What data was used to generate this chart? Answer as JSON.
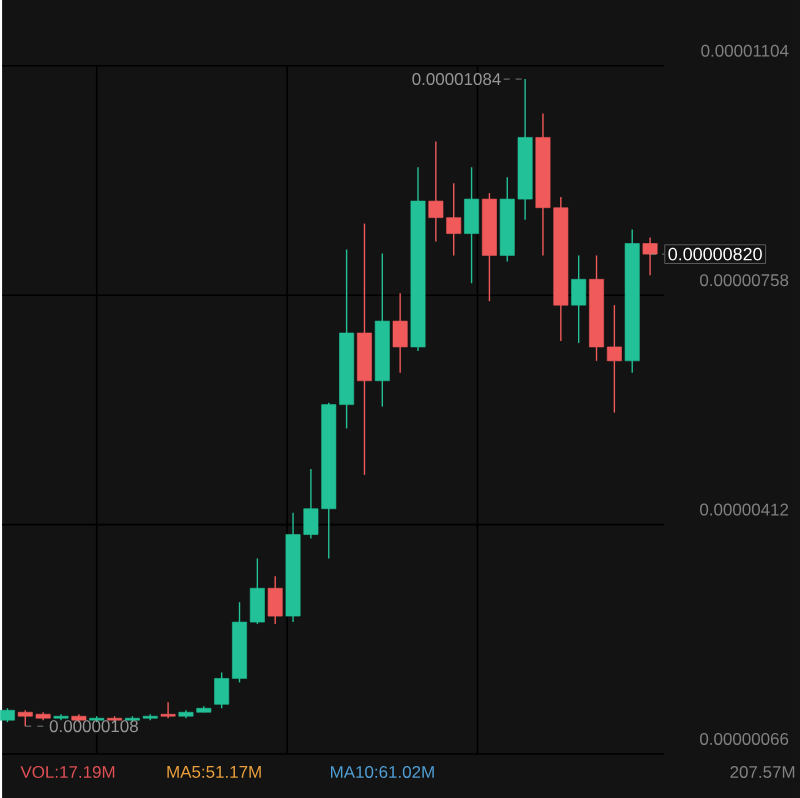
{
  "chart_data": {
    "type": "candlestick",
    "categories": [
      null,
      null,
      null,
      null,
      null,
      null,
      null,
      null,
      null,
      null,
      null,
      null,
      null,
      null,
      null,
      null,
      null,
      null,
      null,
      null,
      null,
      null,
      null,
      null,
      null,
      null,
      null,
      null,
      null,
      null,
      null,
      null,
      null,
      null,
      null,
      null,
      null
    ],
    "ohlc": [
      [
        1.17e-06,
        1.35e-06,
        1.14e-06,
        1.32e-06
      ],
      [
        1.29e-06,
        1.32e-06,
        1.08e-06,
        1.23e-06
      ],
      [
        1.26e-06,
        1.29e-06,
        1.17e-06,
        1.2e-06
      ],
      [
        1.2e-06,
        1.26e-06,
        1.17e-06,
        1.23e-06
      ],
      [
        1.23e-06,
        1.26e-06,
        1.14e-06,
        1.17e-06
      ],
      [
        1.17e-06,
        1.23e-06,
        1.14e-06,
        1.2e-06
      ],
      [
        1.2e-06,
        1.23e-06,
        1.14e-06,
        1.17e-06
      ],
      [
        1.17e-06,
        1.23e-06,
        1.14e-06,
        1.2e-06
      ],
      [
        1.2e-06,
        1.26e-06,
        1.17e-06,
        1.23e-06
      ],
      [
        1.26e-06,
        1.44e-06,
        1.2e-06,
        1.23e-06
      ],
      [
        1.23e-06,
        1.32e-06,
        1.2e-06,
        1.29e-06
      ],
      [
        1.29e-06,
        1.38e-06,
        1.29e-06,
        1.35e-06
      ],
      [
        1.41e-06,
        1.89e-06,
        1.35e-06,
        1.8e-06
      ],
      [
        1.8e-06,
        2.95e-06,
        1.74e-06,
        2.65e-06
      ],
      [
        2.65e-06,
        3.61e-06,
        2.62e-06,
        3.16e-06
      ],
      [
        3.16e-06,
        3.34e-06,
        2.62e-06,
        2.74e-06
      ],
      [
        2.74e-06,
        4.3e-06,
        2.65e-06,
        3.97e-06
      ],
      [
        3.97e-06,
        4.96e-06,
        3.91e-06,
        4.36e-06
      ],
      [
        4.36e-06,
        5.96e-06,
        3.61e-06,
        5.93e-06
      ],
      [
        5.93e-06,
        8.27e-06,
        5.57e-06,
        7.01e-06
      ],
      [
        7.01e-06,
        8.66e-06,
        4.87e-06,
        6.29e-06
      ],
      [
        6.29e-06,
        8.21e-06,
        5.9e-06,
        7.19e-06
      ],
      [
        7.19e-06,
        7.61e-06,
        6.41e-06,
        6.8e-06
      ],
      [
        6.8e-06,
        9.51e-06,
        6.74e-06,
        9e-06
      ],
      [
        9e-06,
        9.9e-06,
        8.39e-06,
        8.75e-06
      ],
      [
        8.75e-06,
        9.27e-06,
        8.18e-06,
        8.51e-06
      ],
      [
        8.51e-06,
        9.51e-06,
        7.76e-06,
        9.03e-06
      ],
      [
        9.03e-06,
        9.12e-06,
        7.49e-06,
        8.18e-06
      ],
      [
        8.18e-06,
        9.36e-06,
        8.09e-06,
        9.03e-06
      ],
      [
        9.03e-06,
        1.084e-05,
        8.72e-06,
        9.96e-06
      ],
      [
        9.96e-06,
        1.032e-05,
        8.18e-06,
        8.9e-06
      ],
      [
        8.9e-06,
        9.06e-06,
        6.89e-06,
        7.43e-06
      ],
      [
        7.43e-06,
        8.18e-06,
        6.86e-06,
        7.82e-06
      ],
      [
        7.82e-06,
        8.18e-06,
        6.59e-06,
        6.8e-06
      ],
      [
        6.8e-06,
        7.43e-06,
        5.81e-06,
        6.59e-06
      ],
      [
        6.59e-06,
        8.57e-06,
        6.41e-06,
        8.36e-06
      ],
      [
        8.36e-06,
        8.45e-06,
        7.88e-06,
        8.2e-06
      ]
    ],
    "colors": [
      "#22c197",
      "#f05a5a",
      "#f05a5a",
      "#22c197",
      "#f05a5a",
      "#22c197",
      "#f05a5a",
      "#22c197",
      "#22c197",
      "#f05a5a",
      "#22c197",
      "#22c197",
      "#22c197",
      "#22c197",
      "#22c197",
      "#f05a5a",
      "#22c197",
      "#22c197",
      "#22c197",
      "#22c197",
      "#f05a5a",
      "#22c197",
      "#f05a5a",
      "#22c197",
      "#f05a5a",
      "#f05a5a",
      "#22c197",
      "#f05a5a",
      "#22c197",
      "#22c197",
      "#f05a5a",
      "#f05a5a",
      "#22c197",
      "#f05a5a",
      "#f05a5a",
      "#22c197",
      "#f05a5a"
    ],
    "ylim": [
      6.6e-07,
      1.104e-05
    ],
    "yticks": [
      {
        "value": 6.6e-07,
        "label": "0.00000066"
      },
      {
        "value": 4.12e-06,
        "label": "0.00000412"
      },
      {
        "value": 7.58e-06,
        "label": "0.00000758"
      },
      {
        "value": 1.104e-05,
        "label": "0.00001104"
      }
    ],
    "grid": true,
    "annotations": [
      "0.00001084",
      "0.00000820",
      "0.00000108",
      "VOL:17.19M",
      "MA5:51.17M",
      "MA10:61.02M",
      "207.57M"
    ]
  }
}
